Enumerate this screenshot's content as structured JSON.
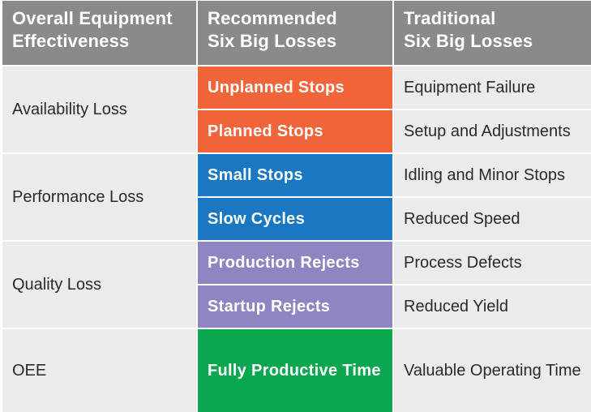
{
  "header": {
    "col1": [
      "Overall Equipment",
      "Effectiveness"
    ],
    "col2": [
      "Recommended",
      "Six Big Losses"
    ],
    "col3": [
      "Traditional",
      "Six Big Losses"
    ]
  },
  "groups": [
    {
      "category": "Availability Loss",
      "color": "#f2653a",
      "rows": [
        {
          "recommended": "Unplanned Stops",
          "traditional": "Equipment Failure"
        },
        {
          "recommended": "Planned Stops",
          "traditional": "Setup and Adjustments"
        }
      ]
    },
    {
      "category": "Performance Loss",
      "color": "#1a78c2",
      "rows": [
        {
          "recommended": "Small Stops",
          "traditional": "Idling and Minor Stops"
        },
        {
          "recommended": "Slow Cycles",
          "traditional": "Reduced Speed"
        }
      ]
    },
    {
      "category": "Quality Loss",
      "color": "#8e86c2",
      "rows": [
        {
          "recommended": "Production Rejects",
          "traditional": "Process Defects"
        },
        {
          "recommended": "Startup Rejects",
          "traditional": "Reduced Yield"
        }
      ]
    },
    {
      "category": "OEE",
      "color": "#0ba650",
      "rows": [
        {
          "recommended": "Fully Productive Time",
          "traditional": "Valuable Operating Time"
        }
      ]
    }
  ]
}
